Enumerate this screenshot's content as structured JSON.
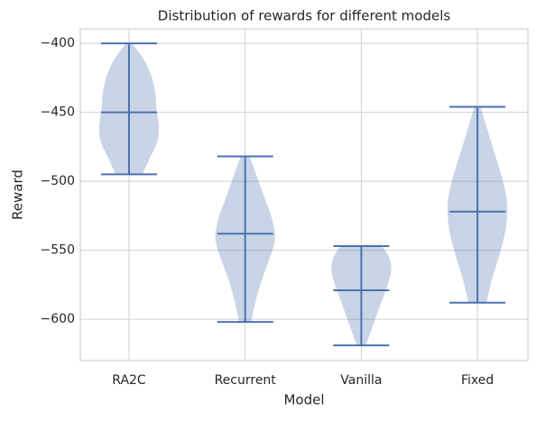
{
  "chart_data": {
    "type": "violin",
    "title": "Distribution of rewards for different models",
    "x_label": "Model",
    "y_label": "Reward",
    "categories": [
      "RA2C",
      "Recurrent",
      "Vanilla",
      "Fixed"
    ],
    "maxes": [
      -400,
      -482,
      -547,
      -446
    ],
    "medians": [
      -450,
      -538,
      -579,
      -522
    ],
    "mins": [
      -495,
      -602,
      -619,
      -588
    ],
    "densities": [
      [
        0.1,
        0.5,
        0.75,
        0.88,
        0.92,
        1.0,
        0.95,
        0.7,
        0.45
      ],
      [
        0.15,
        0.4,
        0.65,
        0.9,
        1.0,
        0.8,
        0.55,
        0.35,
        0.2
      ],
      [
        0.7,
        0.95,
        1.0,
        0.9,
        0.75,
        0.6,
        0.45,
        0.3,
        0.15
      ],
      [
        0.1,
        0.35,
        0.6,
        0.85,
        1.0,
        0.95,
        0.75,
        0.5,
        0.3
      ]
    ],
    "color": "#4c72b0",
    "ylim": [
      -630,
      -389.5
    ],
    "yticks": [
      {
        "value": -400,
        "label": "−400"
      },
      {
        "value": -450,
        "label": "−450"
      },
      {
        "value": -500,
        "label": "−500"
      },
      {
        "value": -550,
        "label": "−550"
      },
      {
        "value": -600,
        "label": "−600"
      }
    ],
    "grid": true
  }
}
